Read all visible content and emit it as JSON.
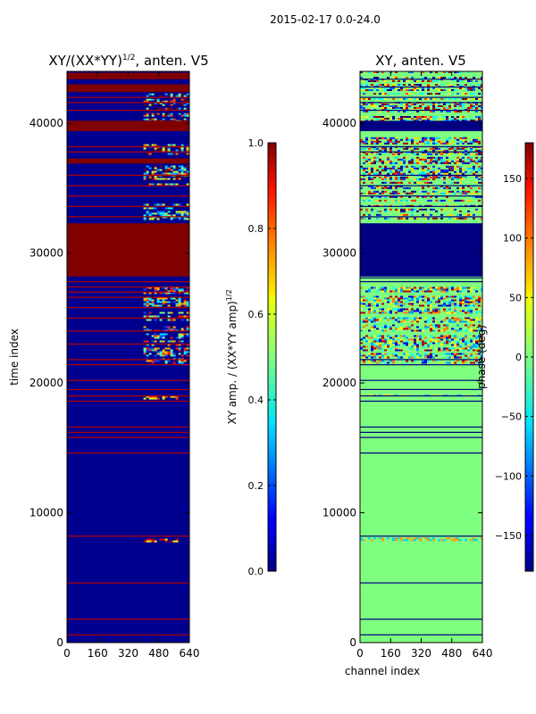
{
  "figure": {
    "suptitle": "2015-02-17 0.0-24.0"
  },
  "chart_data": [
    {
      "type": "heatmap",
      "title": "XY/(XX*YY)",
      "title_sup": "1/2",
      "title_suffix": ", anten. V5",
      "xlabel": "",
      "ylabel": "time index",
      "xlim": [
        0,
        640
      ],
      "ylim": [
        0,
        44000
      ],
      "xticks": [
        0,
        160,
        320,
        480,
        640
      ],
      "yticks": [
        0,
        10000,
        20000,
        30000,
        40000
      ],
      "colormap": "jet",
      "background_value": 0.0,
      "background_color": "#00008f",
      "colorbar": {
        "label": "XY amp. / (XX*YY amp)",
        "label_sup": "1/2",
        "range": [
          0.0,
          1.0
        ],
        "ticks": [
          0.0,
          0.2,
          0.4,
          0.6,
          0.8,
          1.0
        ],
        "tick_labels": [
          "0.0",
          "0.2",
          "0.4",
          "0.6",
          "0.8",
          "1.0"
        ]
      },
      "full_bands": [
        {
          "t0": 28200,
          "t1": 32300,
          "value": 1.0
        },
        {
          "t0": 39400,
          "t1": 40200,
          "value": 1.0
        },
        {
          "t0": 36900,
          "t1": 37300,
          "value": 1.0
        },
        {
          "t0": 42400,
          "t1": 43000,
          "value": 1.0
        },
        {
          "t0": 43400,
          "t1": 43900,
          "value": 1.0
        }
      ],
      "thin_lines": {
        "value": 0.95,
        "t": [
          600,
          1800,
          4600,
          8200,
          14600,
          15800,
          16200,
          16600,
          18600,
          19000,
          19500,
          20200,
          21400,
          21800,
          23000,
          24000,
          25000,
          25800,
          26600,
          27000,
          27400,
          27800,
          32800,
          33600,
          34400,
          35200,
          36000,
          37800,
          38200,
          41000,
          41600,
          42000
        ]
      },
      "active_patches": [
        {
          "c0": 400,
          "c1": 640,
          "t0": 21600,
          "t1": 27400,
          "values": [
            0.2,
            0.35,
            0.5,
            0.7,
            0.85
          ]
        },
        {
          "c0": 400,
          "c1": 640,
          "t0": 32500,
          "t1": 33800,
          "values": [
            0.25,
            0.4,
            0.6
          ]
        },
        {
          "c0": 400,
          "c1": 640,
          "t0": 35100,
          "t1": 38400,
          "values": [
            0.3,
            0.55,
            0.75,
            1.0
          ]
        },
        {
          "c0": 400,
          "c1": 640,
          "t0": 40100,
          "t1": 42300,
          "values": [
            0.3,
            0.5,
            0.8,
            1.0
          ]
        },
        {
          "c0": 400,
          "c1": 580,
          "t0": 7800,
          "t1": 8000,
          "values": [
            0.6,
            0.9
          ]
        },
        {
          "c0": 400,
          "c1": 580,
          "t0": 18800,
          "t1": 19000,
          "values": [
            0.6,
            0.8
          ]
        },
        {
          "c0": 400,
          "c1": 520,
          "t0": 43600,
          "t1": 44000,
          "values": [
            0.7,
            1.0
          ]
        }
      ]
    },
    {
      "type": "heatmap",
      "title": "XY, anten. V5",
      "xlabel": "channel index",
      "ylabel": "",
      "xlim": [
        0,
        640
      ],
      "ylim": [
        0,
        44000
      ],
      "xticks": [
        0,
        160,
        320,
        480,
        640
      ],
      "yticks": [
        0,
        10000,
        20000,
        30000,
        40000
      ],
      "colormap": "jet",
      "background_value": 0,
      "background_color": "#7fff7f",
      "colorbar": {
        "label": "phase (deg)",
        "range": [
          -180,
          180
        ],
        "ticks": [
          -150,
          -100,
          -50,
          0,
          50,
          100,
          150
        ],
        "tick_labels": [
          "−150",
          "−100",
          "−50",
          "0",
          "50",
          "100",
          "150"
        ]
      },
      "full_bands": [
        {
          "t0": 28200,
          "t1": 32300,
          "value": -180
        },
        {
          "t0": 39400,
          "t1": 40200,
          "value": -180
        }
      ],
      "thin_lines": {
        "value": -180,
        "t": [
          600,
          1800,
          4600,
          8200,
          14600,
          15800,
          16200,
          16600,
          18600,
          19000,
          19500,
          20200,
          21400,
          21800,
          27800,
          28100,
          32800,
          33600,
          34400,
          35200,
          36000,
          37800,
          38200,
          41000,
          41600,
          42000,
          42800,
          43400
        ]
      },
      "active_patches": [
        {
          "c0": 0,
          "c1": 640,
          "t0": 21600,
          "t1": 27400,
          "values": [
            -80,
            -40,
            40,
            90,
            160,
            -150
          ]
        },
        {
          "c0": 0,
          "c1": 640,
          "t0": 32500,
          "t1": 39200,
          "values": [
            -170,
            -120,
            -60,
            60,
            120,
            170
          ]
        },
        {
          "c0": 0,
          "c1": 640,
          "t0": 40200,
          "t1": 44000,
          "values": [
            -170,
            -100,
            -40,
            50,
            110,
            170
          ]
        },
        {
          "c0": 0,
          "c1": 640,
          "t0": 7900,
          "t1": 8100,
          "values": [
            -60,
            80
          ]
        },
        {
          "c0": 0,
          "c1": 640,
          "t0": 18900,
          "t1": 19100,
          "values": [
            -80,
            60
          ]
        }
      ]
    }
  ]
}
